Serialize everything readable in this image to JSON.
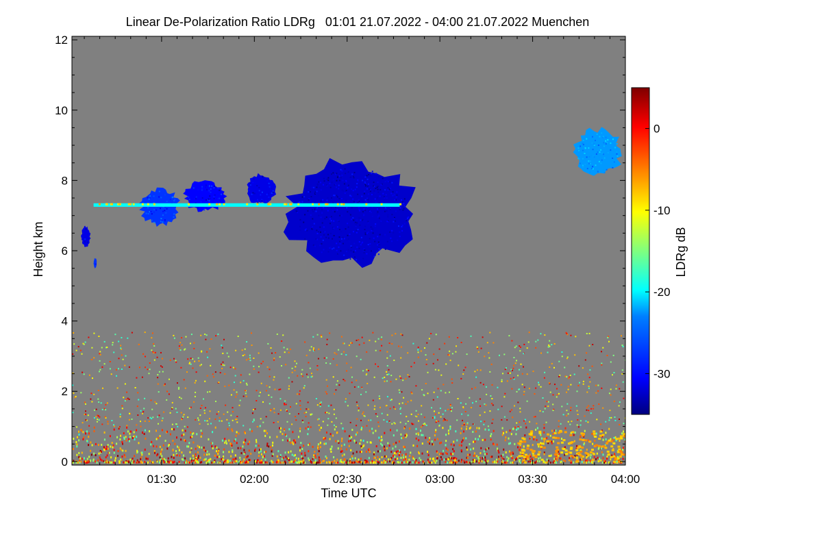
{
  "chart_data": {
    "type": "heatmap",
    "title": "Linear De-Polarization Ratio LDRg   01:01 21.07.2022 - 04:00 21.07.2022 Muenchen",
    "xlabel": "Time UTC",
    "ylabel": "Height km",
    "xlim_minutes": [
      61,
      240
    ],
    "ylim_km": [
      -0.1,
      12.1
    ],
    "x_ticks": [
      {
        "label": "01:30",
        "minutes": 90
      },
      {
        "label": "02:00",
        "minutes": 120
      },
      {
        "label": "02:30",
        "minutes": 150
      },
      {
        "label": "03:00",
        "minutes": 180
      },
      {
        "label": "03:30",
        "minutes": 210
      },
      {
        "label": "04:00",
        "minutes": 240
      }
    ],
    "y_ticks": [
      {
        "label": "0",
        "km": 0
      },
      {
        "label": "2",
        "km": 2
      },
      {
        "label": "4",
        "km": 4
      },
      {
        "label": "6",
        "km": 6
      },
      {
        "label": "8",
        "km": 8
      },
      {
        "label": "10",
        "km": 10
      },
      {
        "label": "12",
        "km": 12
      }
    ],
    "colorbar": {
      "label": "LDRg dB",
      "range_db": [
        -35,
        5
      ],
      "ticks": [
        {
          "label": "0",
          "db": 0
        },
        {
          "label": "-10",
          "db": -10
        },
        {
          "label": "-20",
          "db": -20
        },
        {
          "label": "-30",
          "db": -30
        }
      ],
      "colors": [
        "#00007f",
        "#0000ff",
        "#007fff",
        "#00ffff",
        "#7fff7f",
        "#ffff00",
        "#ff7f00",
        "#ff0000",
        "#7f0000"
      ]
    },
    "background_color": "#808080",
    "features": [
      {
        "name": "cloud-low-1",
        "t_start": 64,
        "t_end": 67,
        "h_min": 6.1,
        "h_max": 6.7,
        "ldr_db": -31
      },
      {
        "name": "cloud-low-2",
        "t_start": 68,
        "t_end": 69,
        "h_min": 5.5,
        "h_max": 5.8,
        "ldr_db": -28
      },
      {
        "name": "cloud-mid-1",
        "t_start": 83,
        "t_end": 96,
        "h_min": 6.7,
        "h_max": 7.8,
        "ldr_db": -28
      },
      {
        "name": "cloud-mid-2",
        "t_start": 97,
        "t_end": 111,
        "h_min": 7.1,
        "h_max": 8.0,
        "ldr_db": -30
      },
      {
        "name": "cloud-cell",
        "t_start": 117,
        "t_end": 127,
        "h_min": 7.3,
        "h_max": 8.2,
        "ldr_db": -31
      },
      {
        "name": "cloud-main",
        "t_start": 130,
        "t_end": 173,
        "h_min": 5.5,
        "h_max": 8.6,
        "ldr_db": -32
      },
      {
        "name": "cirrus-late",
        "t_start": 223,
        "t_end": 239,
        "h_min": 8.1,
        "h_max": 9.5,
        "ldr_db": -24
      },
      {
        "name": "melting-layer",
        "t_start": 68,
        "t_end": 167,
        "h_min": 7.25,
        "h_max": 7.35,
        "ldr_db": -20
      },
      {
        "name": "boundary-layer",
        "t_start": 61,
        "t_end": 240,
        "h_min": 0,
        "h_max": 3.7,
        "ldr_db": -8
      }
    ]
  }
}
